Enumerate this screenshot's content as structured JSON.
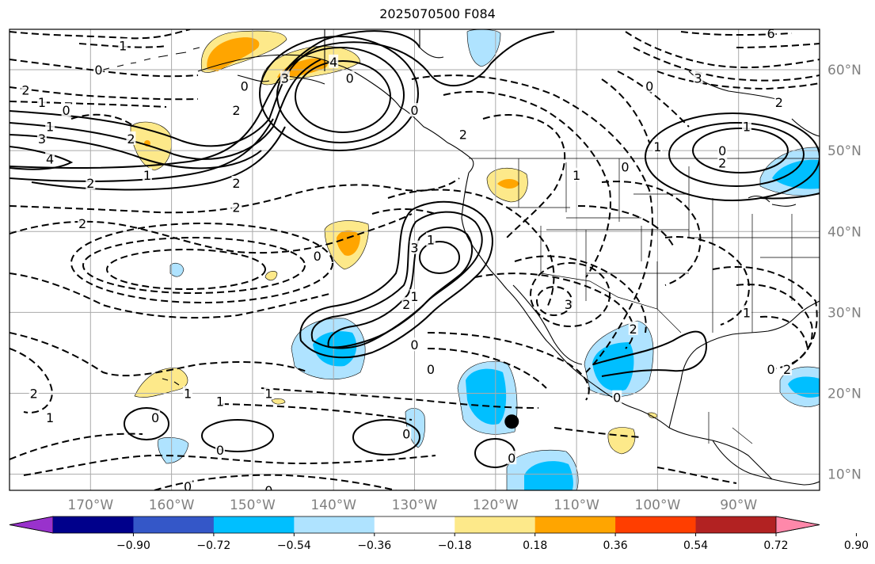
{
  "title": "2025070500 F084",
  "map": {
    "lon_labels": [
      "170°W",
      "160°W",
      "150°W",
      "140°W",
      "130°W",
      "120°W",
      "110°W",
      "100°W",
      "90°W"
    ],
    "lat_labels": [
      "60°N",
      "50°N",
      "40°N",
      "30°N",
      "20°N",
      "10°N"
    ],
    "lon_ticks": [
      -170,
      -160,
      -150,
      -140,
      -130,
      -120,
      -110,
      -100,
      -90
    ],
    "lat_ticks": [
      60,
      50,
      40,
      30,
      20,
      10
    ],
    "extent": {
      "lon_min": -180,
      "lon_max": -80,
      "lat_min": 8,
      "lat_max": 65
    },
    "marker": {
      "lon": -118,
      "lat": 16.5,
      "color": "#000000"
    }
  },
  "contour_labels": [
    {
      "text": "1",
      "lon": -166,
      "lat": 63
    },
    {
      "text": "0",
      "lon": -169,
      "lat": 60
    },
    {
      "text": "2",
      "lon": -178,
      "lat": 57.5
    },
    {
      "text": "1",
      "lon": -176,
      "lat": 56
    },
    {
      "text": "0",
      "lon": -173,
      "lat": 55
    },
    {
      "text": "1",
      "lon": -175,
      "lat": 53
    },
    {
      "text": "3",
      "lon": -176,
      "lat": 51.5
    },
    {
      "text": "2",
      "lon": -165,
      "lat": 51.5
    },
    {
      "text": "4",
      "lon": -175,
      "lat": 49
    },
    {
      "text": "2",
      "lon": -170,
      "lat": 46
    },
    {
      "text": "2",
      "lon": -152,
      "lat": 55
    },
    {
      "text": "0",
      "lon": -151,
      "lat": 58
    },
    {
      "text": "3",
      "lon": -146,
      "lat": 59
    },
    {
      "text": "4",
      "lon": -140,
      "lat": 61
    },
    {
      "text": "0",
      "lon": -138,
      "lat": 59
    },
    {
      "text": "2",
      "lon": -152,
      "lat": 46
    },
    {
      "text": "1",
      "lon": -163,
      "lat": 47
    },
    {
      "text": "2",
      "lon": -152,
      "lat": 43
    },
    {
      "text": "2",
      "lon": -171,
      "lat": 41
    },
    {
      "text": "2",
      "lon": -124,
      "lat": 52
    },
    {
      "text": "0",
      "lon": -130,
      "lat": 55
    },
    {
      "text": "0",
      "lon": -142,
      "lat": 37
    },
    {
      "text": "3",
      "lon": -130,
      "lat": 38
    },
    {
      "text": "1",
      "lon": -128,
      "lat": 39
    },
    {
      "text": "2",
      "lon": -131,
      "lat": 31
    },
    {
      "text": "1",
      "lon": -130,
      "lat": 32
    },
    {
      "text": "0",
      "lon": -130,
      "lat": 26
    },
    {
      "text": "0",
      "lon": -128,
      "lat": 23
    },
    {
      "text": "0",
      "lon": -154,
      "lat": 13
    },
    {
      "text": "0",
      "lon": -162,
      "lat": 17
    },
    {
      "text": "1",
      "lon": -154,
      "lat": 19
    },
    {
      "text": "1",
      "lon": -148,
      "lat": 20
    },
    {
      "text": "1",
      "lon": -158,
      "lat": 20
    },
    {
      "text": "2",
      "lon": -177,
      "lat": 20
    },
    {
      "text": "1",
      "lon": -175,
      "lat": 17
    },
    {
      "text": "0",
      "lon": -131,
      "lat": 15
    },
    {
      "text": "0",
      "lon": -118,
      "lat": 12
    },
    {
      "text": "0",
      "lon": -158,
      "lat": 8.5
    },
    {
      "text": "0",
      "lon": -148,
      "lat": 8
    },
    {
      "text": "0",
      "lon": -105,
      "lat": 19.5
    },
    {
      "text": "1",
      "lon": -100,
      "lat": 50.5
    },
    {
      "text": "2",
      "lon": -92,
      "lat": 48.5
    },
    {
      "text": "0",
      "lon": -92,
      "lat": 50
    },
    {
      "text": "1",
      "lon": -89,
      "lat": 53
    },
    {
      "text": "2",
      "lon": -85,
      "lat": 56
    },
    {
      "text": "3",
      "lon": -95,
      "lat": 59
    },
    {
      "text": "0",
      "lon": -101,
      "lat": 58
    },
    {
      "text": "1",
      "lon": -110,
      "lat": 47
    },
    {
      "text": "0",
      "lon": -104,
      "lat": 48
    },
    {
      "text": "3",
      "lon": -111,
      "lat": 31
    },
    {
      "text": "2",
      "lon": -103,
      "lat": 28
    },
    {
      "text": "1",
      "lon": -89,
      "lat": 30
    },
    {
      "text": "0",
      "lon": -86,
      "lat": 23
    },
    {
      "text": "2",
      "lon": -84,
      "lat": 23
    },
    {
      "text": "6",
      "lon": -86,
      "lat": 64.5
    }
  ],
  "colorbar": {
    "ticks": [
      "−0.90",
      "−0.72",
      "−0.54",
      "−0.36",
      "−0.18",
      "0.18",
      "0.36",
      "0.54",
      "0.72",
      "0.90"
    ],
    "colors": [
      "#9932cc",
      "#00008b",
      "#3457c8",
      "#00bfff",
      "#afe3ff",
      "#ffffff",
      "#fde98a",
      "#ffa500",
      "#ff3e00",
      "#b22222",
      "#ff88aa"
    ]
  }
}
